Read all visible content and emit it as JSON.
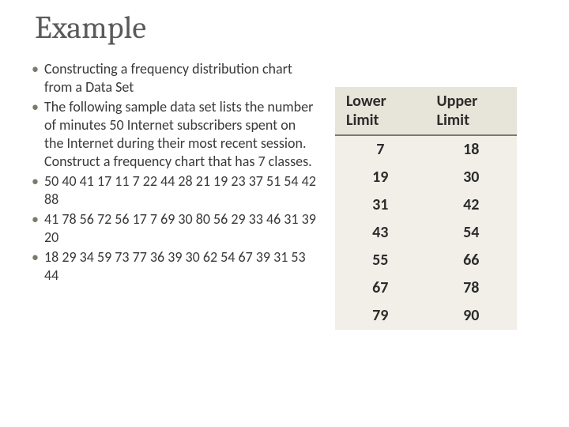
{
  "title": "Example",
  "bullets": [
    "Constructing a frequency distribution chart from a Data Set",
    "The following sample data set lists the number of minutes 50 Internet subscribers spent on the Internet during their most recent session. Construct a frequency chart that has 7 classes.",
    "50 40 41 17 11 7 22 44  28 21 19  23 37 51 54 42 88",
    "41 78 56  72 56  17 7 69 30 80 56 29 33  46  31 39 20",
    "18 29 34 59 73 77 36 39 30 62 54 67 39 31 53 44"
  ],
  "table": {
    "headers": [
      "Lower Limit",
      "Upper Limit"
    ],
    "rows": [
      [
        "7",
        "18"
      ],
      [
        "19",
        "30"
      ],
      [
        "31",
        "42"
      ],
      [
        "43",
        "54"
      ],
      [
        "55",
        "66"
      ],
      [
        "67",
        "78"
      ],
      [
        "79",
        "90"
      ]
    ],
    "header_bg": "#e7e4d9",
    "header_border": "#7d7a6d",
    "body_bg": "#f1efe8",
    "text_color": "#2b2b2b",
    "font_size": 20
  },
  "colors": {
    "title": "#5a5a5a",
    "bullet_marker": "#7d7a6d",
    "body_text": "#3a3a3a",
    "background": "#ffffff"
  },
  "typography": {
    "title_family": "Cambria",
    "title_size": 40,
    "body_family": "Calibri",
    "body_size": 18
  }
}
